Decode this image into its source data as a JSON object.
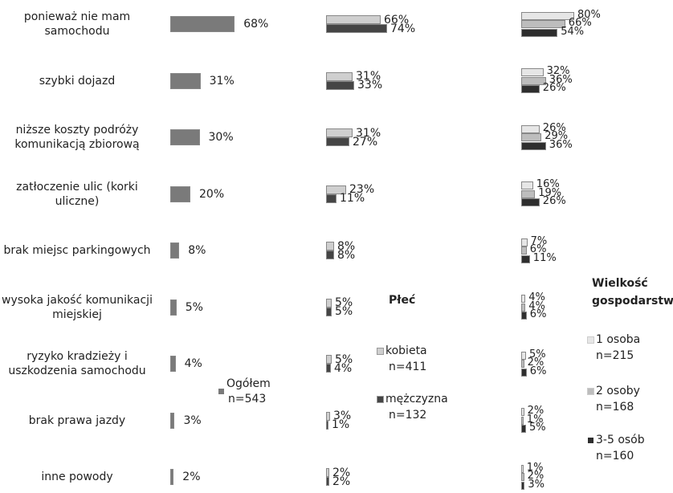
{
  "chart_data": [
    {
      "type": "bar",
      "categories": [
        "ponieważ nie mam samochodu",
        "szybki dojazd",
        "niższe koszty podróży komunikacją zbiorową",
        "zatłoczenie ulic (korki uliczne)",
        "brak miejsc parkingowych",
        "wysoka jakość komunikacji miejskiej",
        "ryzyko kradzieży i uszkodzenia samochodu",
        "brak prawa jazdy",
        "inne powody"
      ],
      "series": [
        {
          "name": "Ogółem",
          "n": "n=543",
          "color": "#7a7a7a",
          "values": [
            68,
            31,
            30,
            20,
            8,
            5,
            4,
            3,
            2
          ],
          "value_labels": [
            "68%",
            "31%",
            "30%",
            "20%",
            "8%",
            "5%",
            "4%",
            "3%",
            "2%"
          ]
        }
      ]
    },
    {
      "type": "bar",
      "title": "Płeć",
      "series": [
        {
          "name": "kobieta",
          "n": "n=411",
          "color": "#cfcfcf",
          "values": [
            66,
            31,
            31,
            23,
            8,
            5,
            5,
            3,
            2
          ],
          "value_labels": [
            "66%",
            "31%",
            "31%",
            "23%",
            "8%",
            "5%",
            "5%",
            "3%",
            "2%"
          ]
        },
        {
          "name": "mężczyzna",
          "n": "n=132",
          "color": "#454545",
          "values": [
            74,
            33,
            27,
            11,
            8,
            5,
            4,
            1,
            2
          ],
          "value_labels": [
            "74%",
            "33%",
            "27%",
            "11%",
            "8%",
            "5%",
            "4%",
            "1%",
            "2%"
          ]
        }
      ]
    },
    {
      "type": "bar",
      "title": "Wielkość gospodarstwa",
      "series": [
        {
          "name": "1 osoba",
          "n": "n=215",
          "color": "#e6e6e6",
          "values": [
            80,
            32,
            26,
            16,
            7,
            4,
            5,
            2,
            1
          ],
          "value_labels": [
            "80%",
            "32%",
            "26%",
            "16%",
            "7%",
            "4%",
            "5%",
            "2%",
            "1%"
          ]
        },
        {
          "name": "2 osoby",
          "n": "n=168",
          "color": "#bdbdbd",
          "values": [
            66,
            36,
            29,
            19,
            6,
            4,
            2,
            1,
            2
          ],
          "value_labels": [
            "66%",
            "36%",
            "29%",
            "19%",
            "6%",
            "4%",
            "2%",
            "1%",
            "2%"
          ]
        },
        {
          "name": "3-5 osób",
          "n": "n=160",
          "color": "#2e2e2e",
          "values": [
            54,
            26,
            36,
            26,
            11,
            6,
            6,
            5,
            3
          ],
          "value_labels": [
            "54%",
            "26%",
            "36%",
            "26%",
            "11%",
            "6%",
            "6%",
            "5%",
            "3%"
          ]
        }
      ]
    }
  ]
}
